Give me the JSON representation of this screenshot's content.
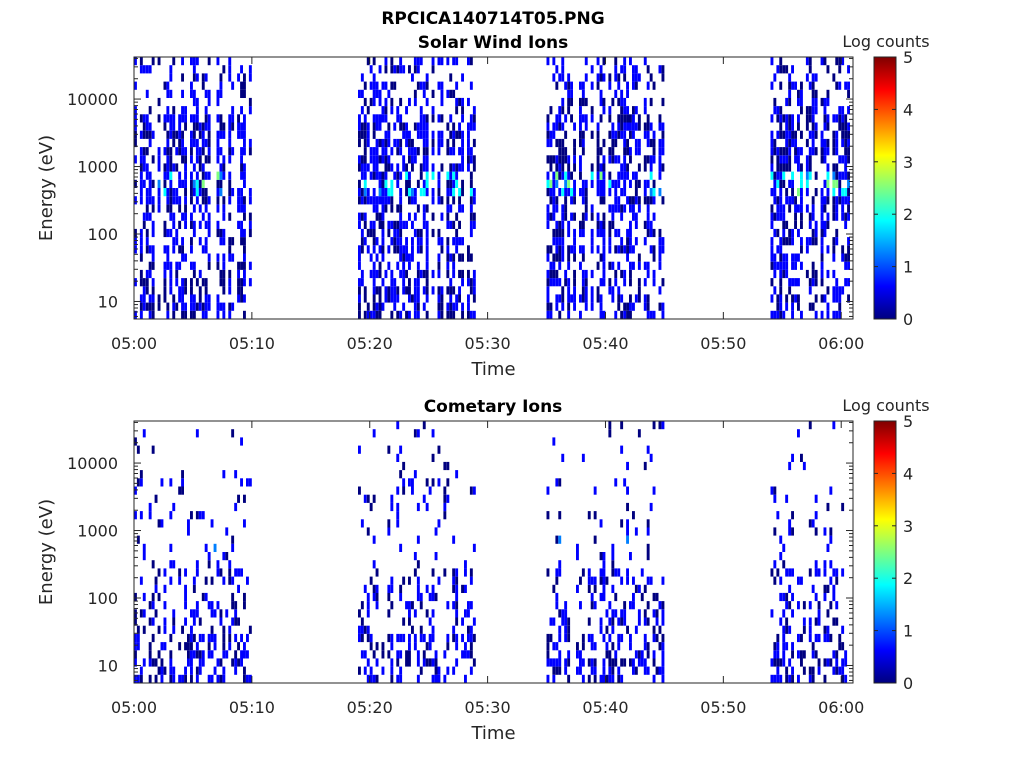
{
  "figure": {
    "filename_title": "RPCICA140714T05.PNG"
  },
  "colormap": [
    "#00007f",
    "#0000ff",
    "#007fff",
    "#00ffff",
    "#7fff7f",
    "#ffff00",
    "#ff7f00",
    "#ff0000",
    "#7f0000"
  ],
  "chart_data": [
    {
      "type": "heatmap",
      "title": "Solar Wind Ions",
      "xlabel": "Time",
      "ylabel": "Energy (eV)",
      "y_scale": "log",
      "ylim": [
        5.5,
        42000
      ],
      "xlim": [
        "05:00",
        "06:01"
      ],
      "x_ticks": [
        "05:00",
        "05:10",
        "05:20",
        "05:30",
        "05:40",
        "05:50",
        "06:00"
      ],
      "y_ticks": [
        10,
        100,
        1000,
        10000
      ],
      "y_tick_labels": [
        "10",
        "100",
        "1000",
        "10000"
      ],
      "colorbar": {
        "label": "Log counts",
        "range": [
          0,
          5
        ],
        "ticks": [
          "0",
          "1",
          "2",
          "3",
          "4",
          "5"
        ]
      },
      "data_intervals": [
        [
          "05:00",
          "05:10"
        ],
        [
          "05:19",
          "05:29"
        ],
        [
          "05:35",
          "05:45"
        ],
        [
          "05:54",
          "06:01"
        ]
      ],
      "peak_energy_eV": 600,
      "peak_log_counts": 2.3,
      "typical_log_counts": [
        0,
        0.8
      ],
      "grid": false
    },
    {
      "type": "heatmap",
      "title": "Cometary Ions",
      "xlabel": "Time",
      "ylabel": "Energy (eV)",
      "y_scale": "log",
      "ylim": [
        5.5,
        42000
      ],
      "xlim": [
        "05:00",
        "06:01"
      ],
      "x_ticks": [
        "05:00",
        "05:10",
        "05:20",
        "05:30",
        "05:40",
        "05:50",
        "06:00"
      ],
      "y_ticks": [
        10,
        100,
        1000,
        10000
      ],
      "y_tick_labels": [
        "10",
        "100",
        "1000",
        "10000"
      ],
      "colorbar": {
        "label": "Log counts",
        "range": [
          0,
          5
        ],
        "ticks": [
          "0",
          "1",
          "2",
          "3",
          "4",
          "5"
        ]
      },
      "data_intervals": [
        [
          "05:00",
          "05:10"
        ],
        [
          "05:19",
          "05:29"
        ],
        [
          "05:35",
          "05:45"
        ],
        [
          "05:54",
          "06:01"
        ]
      ],
      "peak_energy_eV": 550,
      "peak_log_counts": 1.4,
      "typical_log_counts": [
        0,
        0.8
      ],
      "grid": false
    }
  ]
}
